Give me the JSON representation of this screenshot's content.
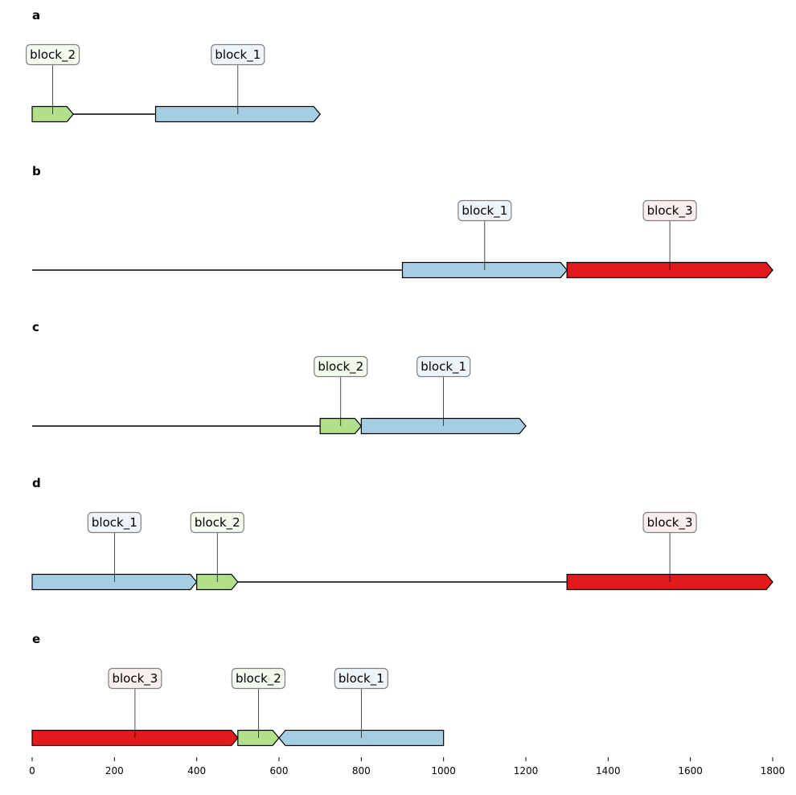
{
  "colors": {
    "block_1": "#a6cee3",
    "block_2": "#b2df8a",
    "block_3": "#e31a1c",
    "label_bg": {
      "block_1": "#eef5fa",
      "block_2": "#f3faee",
      "block_3": "#fbeeee"
    }
  },
  "axis": {
    "min": 0,
    "max": 1800,
    "ticks": [
      0,
      200,
      400,
      600,
      800,
      1000,
      1200,
      1400,
      1600,
      1800
    ]
  },
  "panels": [
    {
      "label": "a",
      "length": 700,
      "blocks": [
        {
          "name": "block_2",
          "start": 0,
          "end": 100,
          "strand": "+"
        },
        {
          "name": "block_1",
          "start": 300,
          "end": 700,
          "strand": "+"
        }
      ]
    },
    {
      "label": "b",
      "length": 1800,
      "blocks": [
        {
          "name": "block_1",
          "start": 900,
          "end": 1300,
          "strand": "+"
        },
        {
          "name": "block_3",
          "start": 1300,
          "end": 1800,
          "strand": "+"
        }
      ]
    },
    {
      "label": "c",
      "length": 1200,
      "blocks": [
        {
          "name": "block_2",
          "start": 700,
          "end": 800,
          "strand": "+"
        },
        {
          "name": "block_1",
          "start": 800,
          "end": 1200,
          "strand": "+"
        }
      ]
    },
    {
      "label": "d",
      "length": 1800,
      "blocks": [
        {
          "name": "block_1",
          "start": 0,
          "end": 400,
          "strand": "+"
        },
        {
          "name": "block_2",
          "start": 400,
          "end": 500,
          "strand": "+"
        },
        {
          "name": "block_3",
          "start": 1300,
          "end": 1800,
          "strand": "+"
        }
      ]
    },
    {
      "label": "e",
      "length": 1000,
      "blocks": [
        {
          "name": "block_3",
          "start": 0,
          "end": 500,
          "strand": "+"
        },
        {
          "name": "block_2",
          "start": 500,
          "end": 600,
          "strand": "+"
        },
        {
          "name": "block_1",
          "start": 600,
          "end": 1000,
          "strand": "-"
        }
      ]
    }
  ]
}
